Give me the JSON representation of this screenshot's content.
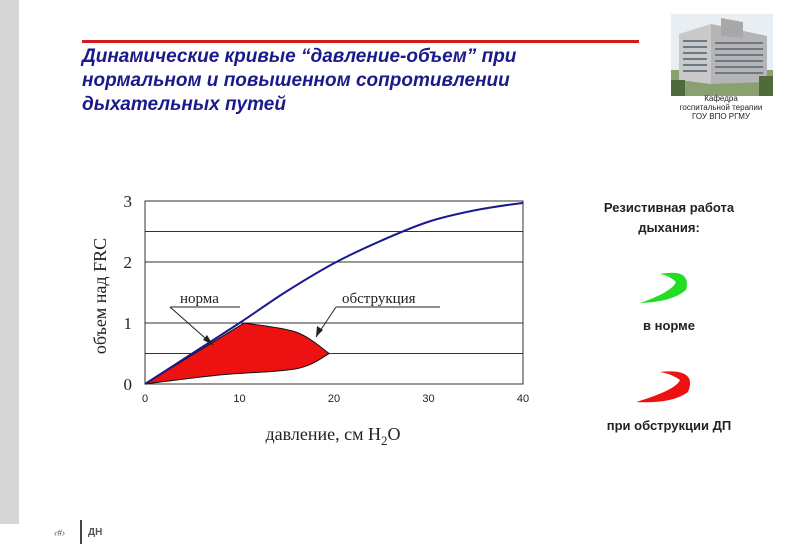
{
  "slide": {
    "title_lines": [
      "Динамические кривые “давление-объем” при",
      "нормальном и повышенном  сопротивлении",
      "дыхательных путей"
    ],
    "logo_caption_lines": [
      "Кафедра",
      "госпитальной терапии",
      "ГОУ ВПО РГМУ"
    ],
    "accent_color": "#d01c1c",
    "title_color": "#1a1a8a"
  },
  "right_panel": {
    "title_lines": [
      "Резистивная работа",
      "дыхания:"
    ],
    "norm_label": "в норме",
    "obstruction_label": "при обструкции ДП",
    "norm_color": "#22dd22",
    "obstruction_color": "#ee1111"
  },
  "footer": {
    "page_number": "‹#›",
    "tag": "ДН"
  },
  "chart_data": {
    "type": "line",
    "xlabel": "давление, см H",
    "xlabel_sub": "2",
    "xlabel_tail": "O",
    "ylabel": "объем над FRC",
    "xlim": [
      0,
      40
    ],
    "ylim": [
      0,
      3
    ],
    "x_ticks": [
      "0",
      "10",
      "20",
      "30",
      "40"
    ],
    "y_ticks": [
      "0",
      "1",
      "2",
      "3"
    ],
    "grid": "horizontal",
    "annotations": [
      "норма",
      "обструкция"
    ],
    "series": [
      {
        "role": "pressure-volume curve",
        "color": "#1a1a8a",
        "x": [
          0,
          5,
          10,
          15,
          20,
          25,
          30,
          35,
          40
        ],
        "y": [
          0,
          0.5,
          1.0,
          1.52,
          1.98,
          2.35,
          2.66,
          2.85,
          2.97
        ]
      }
    ],
    "loops": [
      {
        "role": "norm",
        "color": "#22dd22",
        "upper": {
          "x": [
            0,
            10.5
          ],
          "y": [
            0,
            1.0
          ]
        },
        "lower": {
          "x": [
            0,
            4,
            8,
            10.5
          ],
          "y": [
            0,
            0.15,
            0.45,
            1.0
          ]
        }
      },
      {
        "role": "obstruction",
        "color": "#ee1111",
        "upper": {
          "x": [
            10.5,
            16,
            19.5
          ],
          "y": [
            1.0,
            0.85,
            0.5
          ]
        },
        "lower": {
          "x": [
            0,
            8,
            16,
            19.5
          ],
          "y": [
            0,
            0.15,
            0.25,
            0.5
          ]
        }
      }
    ]
  }
}
